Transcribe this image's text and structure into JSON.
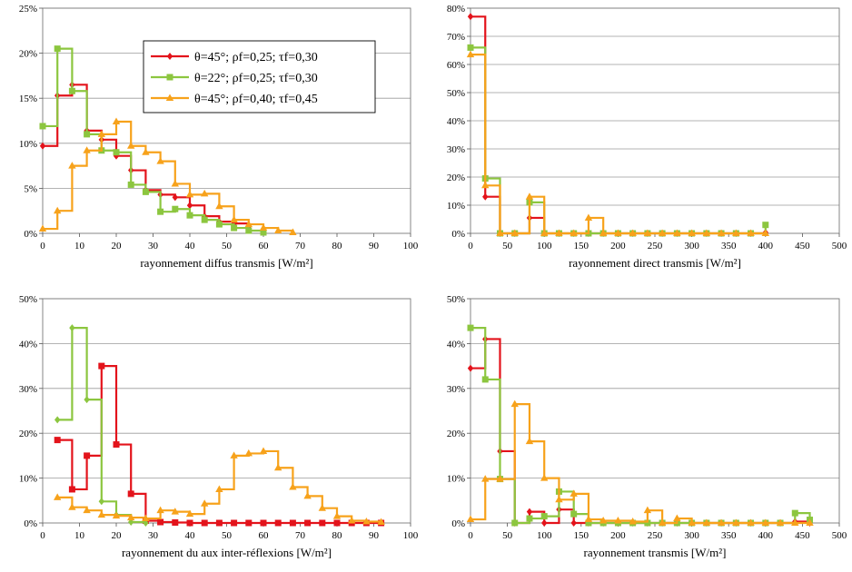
{
  "chart_data": [
    {
      "type": "line",
      "step": true,
      "xlabel": "rayonnement diffus transmis [W/m²]",
      "ylabel": "",
      "xlim": [
        0,
        100
      ],
      "ylim": [
        0,
        25
      ],
      "xticks": [
        0,
        10,
        20,
        30,
        40,
        50,
        60,
        70,
        80,
        90,
        100
      ],
      "yticks": [
        0,
        5,
        10,
        15,
        20,
        25
      ],
      "y_unit": "%",
      "grid": true,
      "legend": {
        "position": "top-center",
        "entries": [
          "θ=45°; ρf=0,25; τf=0,30",
          "θ=22°; ρf=0,25; τf=0,30",
          "θ=45°; ρf=0,40; τf=0,45"
        ]
      },
      "series": [
        {
          "name": "θ=45°; ρf=0,25; τf=0,30",
          "color": "#e3131b",
          "marker": "diamond",
          "x": [
            0,
            4,
            8,
            12,
            16,
            20,
            24,
            28,
            32,
            36,
            40,
            44,
            48,
            52,
            56
          ],
          "y": [
            9.7,
            15.3,
            16.5,
            11.4,
            10.4,
            8.6,
            7.0,
            4.8,
            4.3,
            4.0,
            3.1,
            1.9,
            1.3,
            1.1,
            0.8
          ]
        },
        {
          "name": "θ=22°; ρf=0,25; τf=0,30",
          "color": "#8cc63f",
          "marker": "square",
          "x": [
            0,
            4,
            8,
            12,
            16,
            20,
            24,
            28,
            32,
            36,
            40,
            44,
            48,
            52,
            56,
            60
          ],
          "y": [
            11.9,
            20.5,
            15.8,
            11.0,
            9.2,
            9.0,
            5.4,
            4.6,
            2.4,
            2.7,
            2.0,
            1.5,
            1.0,
            0.6,
            0.3,
            0.1
          ]
        },
        {
          "name": "θ=45°; ρf=0,40; τf=0,45",
          "color": "#f7a21b",
          "marker": "triangle",
          "x": [
            0,
            4,
            8,
            12,
            16,
            20,
            24,
            28,
            32,
            36,
            40,
            44,
            48,
            52,
            56,
            60,
            64,
            68
          ],
          "y": [
            0.5,
            2.5,
            7.5,
            9.2,
            11.0,
            12.4,
            9.7,
            9.0,
            8.0,
            5.5,
            4.3,
            4.4,
            3.0,
            1.5,
            1.0,
            0.6,
            0.3,
            0.1
          ]
        }
      ]
    },
    {
      "type": "line",
      "step": true,
      "xlabel": "rayonnement direct transmis [W/m²]",
      "ylabel": "",
      "xlim": [
        0,
        500
      ],
      "ylim": [
        0,
        80
      ],
      "xticks": [
        0,
        50,
        100,
        150,
        200,
        250,
        300,
        350,
        400,
        450,
        500
      ],
      "yticks": [
        0,
        10,
        20,
        30,
        40,
        50,
        60,
        70,
        80
      ],
      "y_unit": "%",
      "grid": true,
      "series": [
        {
          "color": "#e3131b",
          "marker": "diamond",
          "x": [
            0,
            20,
            40,
            60,
            80,
            100,
            120,
            140,
            160,
            180,
            200,
            220,
            240,
            260,
            280,
            300,
            320,
            340,
            360,
            380,
            400
          ],
          "y": [
            77,
            13,
            0,
            0,
            5.5,
            0,
            0,
            0,
            0,
            0,
            0,
            0,
            0,
            0,
            0,
            0,
            0,
            0,
            0,
            0,
            0.3
          ]
        },
        {
          "color": "#8cc63f",
          "marker": "square",
          "x": [
            0,
            20,
            40,
            60,
            80,
            100,
            120,
            140,
            160,
            180,
            200,
            220,
            240,
            260,
            280,
            300,
            320,
            340,
            360,
            380,
            400
          ],
          "y": [
            66,
            19.5,
            0,
            0,
            11,
            0,
            0,
            0,
            0,
            0,
            0,
            0,
            0,
            0,
            0,
            0,
            0,
            0,
            0,
            0,
            3
          ]
        },
        {
          "color": "#f7a21b",
          "marker": "triangle",
          "x": [
            0,
            20,
            40,
            60,
            80,
            100,
            120,
            140,
            160,
            180,
            200,
            220,
            240,
            260,
            280,
            300,
            320,
            340,
            360,
            380,
            400
          ],
          "y": [
            63.5,
            17,
            0,
            0,
            13,
            0,
            0,
            0,
            5.5,
            0,
            0,
            0,
            0,
            0,
            0,
            0,
            0,
            0,
            0,
            0,
            0
          ]
        }
      ]
    },
    {
      "type": "line",
      "step": true,
      "xlabel": "rayonnement du aux inter-réflexions [W/m²]",
      "ylabel": "",
      "xlim": [
        0,
        100
      ],
      "ylim": [
        0,
        50
      ],
      "xticks": [
        0,
        10,
        20,
        30,
        40,
        50,
        60,
        70,
        80,
        90,
        100
      ],
      "yticks": [
        0,
        10,
        20,
        30,
        40,
        50
      ],
      "y_unit": "%",
      "grid": true,
      "series": [
        {
          "color": "#e3131b",
          "marker": "square",
          "x": [
            4,
            8,
            12,
            16,
            20,
            24,
            28,
            32,
            36,
            40,
            44,
            48,
            52,
            56,
            60,
            64,
            68,
            72,
            76,
            80,
            84,
            88,
            92
          ],
          "y": [
            18.5,
            7.5,
            15,
            35,
            17.5,
            6.5,
            0.5,
            0.2,
            0.1,
            0,
            0,
            0,
            0,
            0,
            0,
            0,
            0,
            0,
            0,
            0,
            0,
            0,
            0
          ]
        },
        {
          "color": "#8cc63f",
          "marker": "diamond",
          "x": [
            4,
            8,
            12,
            16,
            20,
            24,
            28
          ],
          "y": [
            23,
            43.5,
            27.5,
            4.8,
            1.8,
            0.2,
            0
          ]
        },
        {
          "color": "#f7a21b",
          "marker": "triangle",
          "x": [
            4,
            8,
            12,
            16,
            20,
            24,
            28,
            32,
            36,
            40,
            44,
            48,
            52,
            56,
            60,
            64,
            68,
            72,
            76,
            80,
            84,
            88,
            92
          ],
          "y": [
            5.7,
            3.5,
            2.8,
            1.8,
            1.6,
            1.2,
            1.0,
            2.8,
            2.5,
            2.0,
            4.3,
            7.5,
            15.0,
            15.5,
            16.0,
            12.3,
            8.0,
            6.0,
            3.3,
            1.5,
            0.5,
            0.3,
            0.2
          ]
        }
      ]
    },
    {
      "type": "line",
      "step": true,
      "xlabel": "rayonnement transmis [W/m²]",
      "ylabel": "",
      "xlim": [
        0,
        500
      ],
      "ylim": [
        0,
        50
      ],
      "xticks": [
        0,
        50,
        100,
        150,
        200,
        250,
        300,
        350,
        400,
        450,
        500
      ],
      "yticks": [
        0,
        10,
        20,
        30,
        40,
        50
      ],
      "y_unit": "%",
      "grid": true,
      "series": [
        {
          "color": "#e3131b",
          "marker": "diamond",
          "x": [
            0,
            20,
            40,
            60,
            80,
            100,
            120,
            140,
            160,
            180,
            200,
            220,
            240,
            260,
            280,
            300,
            320,
            340,
            360,
            380,
            400,
            420,
            440,
            460
          ],
          "y": [
            34.5,
            41,
            16,
            0,
            2.5,
            0,
            3,
            0,
            0,
            0,
            0,
            0,
            0,
            0,
            0,
            0,
            0,
            0,
            0,
            0,
            0,
            0,
            0.3,
            0
          ]
        },
        {
          "color": "#8cc63f",
          "marker": "square",
          "x": [
            0,
            20,
            40,
            60,
            80,
            100,
            120,
            140,
            160,
            180,
            200,
            220,
            240,
            260,
            280,
            300,
            320,
            340,
            360,
            380,
            400,
            420,
            440,
            460
          ],
          "y": [
            43.5,
            32,
            9.8,
            0,
            1,
            1.5,
            7,
            2,
            0,
            0,
            0,
            0,
            0,
            0,
            0,
            0,
            0,
            0,
            0,
            0,
            0,
            0,
            2.2,
            0.7
          ]
        },
        {
          "color": "#f7a21b",
          "marker": "triangle",
          "x": [
            0,
            20,
            40,
            60,
            80,
            100,
            120,
            140,
            160,
            180,
            200,
            220,
            240,
            260,
            280,
            300,
            320,
            340,
            360,
            380,
            400,
            420,
            440,
            460
          ],
          "y": [
            0.8,
            9.8,
            9.8,
            26.5,
            18.2,
            10,
            5.2,
            6.5,
            0.8,
            0.5,
            0.5,
            0.3,
            2.8,
            0,
            1,
            0,
            0,
            0,
            0,
            0,
            0,
            0,
            0,
            0
          ]
        }
      ]
    }
  ]
}
